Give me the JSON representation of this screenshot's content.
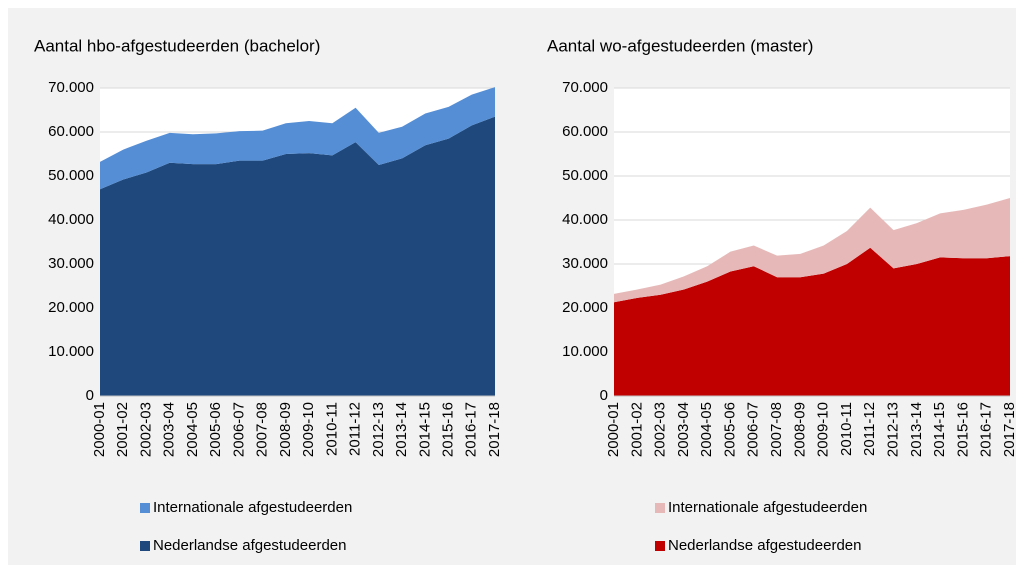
{
  "chart_data": [
    {
      "type": "area",
      "stacked": true,
      "title": "Aantal hbo-afgestudeerden (bachelor)",
      "categories": [
        "2000-01",
        "2001-02",
        "2002-03",
        "2003-04",
        "2004-05",
        "2005-06",
        "2006-07",
        "2007-08",
        "2008-09",
        "2009-10",
        "2010-11",
        "2011-12",
        "2012-13",
        "2013-14",
        "2014-15",
        "2015-16",
        "2016-17",
        "2017-18"
      ],
      "series": [
        {
          "name": "Internationale afgestudeerden",
          "color": "#558ed5",
          "values": [
            6200,
            6800,
            7200,
            6800,
            6800,
            7000,
            6700,
            6800,
            7000,
            7300,
            7300,
            7800,
            7300,
            7200,
            7200,
            7200,
            7000,
            6700
          ]
        },
        {
          "name": "Nederlandse afgestudeerden",
          "color": "#1f497d",
          "values": [
            47000,
            49200,
            50800,
            53000,
            52700,
            52700,
            53500,
            53500,
            55000,
            55200,
            54700,
            57700,
            52500,
            54000,
            57000,
            58500,
            61500,
            63500
          ]
        }
      ],
      "ylim": [
        0,
        70000
      ],
      "yticks": [
        0,
        {
          "value": 10000,
          "label": "10.000"
        },
        {
          "value": 20000,
          "label": "20.000"
        },
        {
          "value": 30000,
          "label": "30.000"
        },
        {
          "value": 40000,
          "label": "40.000"
        },
        {
          "value": 50000,
          "label": "50.000"
        },
        {
          "value": 60000,
          "label": "60.000"
        },
        {
          "value": 70000,
          "label": "70.000"
        }
      ],
      "grid": true
    },
    {
      "type": "area",
      "stacked": true,
      "title": "Aantal wo-afgestudeerden (master)",
      "categories": [
        "2000-01",
        "2001-02",
        "2002-03",
        "2003-04",
        "2004-05",
        "2005-06",
        "2006-07",
        "2007-08",
        "2008-09",
        "2009-10",
        "2010-11",
        "2011-12",
        "2012-13",
        "2013-14",
        "2014-15",
        "2015-16",
        "2016-17",
        "2017-18"
      ],
      "series": [
        {
          "name": "Internationale afgestudeerden",
          "color": "#e6b9b8",
          "values": [
            1900,
            1900,
            2300,
            3000,
            3500,
            4500,
            4700,
            4900,
            5300,
            6400,
            7500,
            9100,
            8700,
            9300,
            10000,
            11000,
            12200,
            13200
          ]
        },
        {
          "name": "Nederlandse afgestudeerden",
          "color": "#c00000",
          "values": [
            21300,
            22300,
            23000,
            24200,
            26000,
            28300,
            29500,
            27000,
            27000,
            27800,
            30000,
            33700,
            29000,
            30000,
            31500,
            31300,
            31300,
            31800
          ]
        }
      ],
      "ylim": [
        0,
        70000
      ],
      "yticks": [
        0,
        {
          "value": 10000,
          "label": "10.000"
        },
        {
          "value": 20000,
          "label": "20.000"
        },
        {
          "value": 30000,
          "label": "30.000"
        },
        {
          "value": 40000,
          "label": "40.000"
        },
        {
          "value": 50000,
          "label": "50.000"
        },
        {
          "value": 60000,
          "label": "60.000"
        },
        {
          "value": 70000,
          "label": "70.000"
        }
      ],
      "grid": true
    }
  ]
}
